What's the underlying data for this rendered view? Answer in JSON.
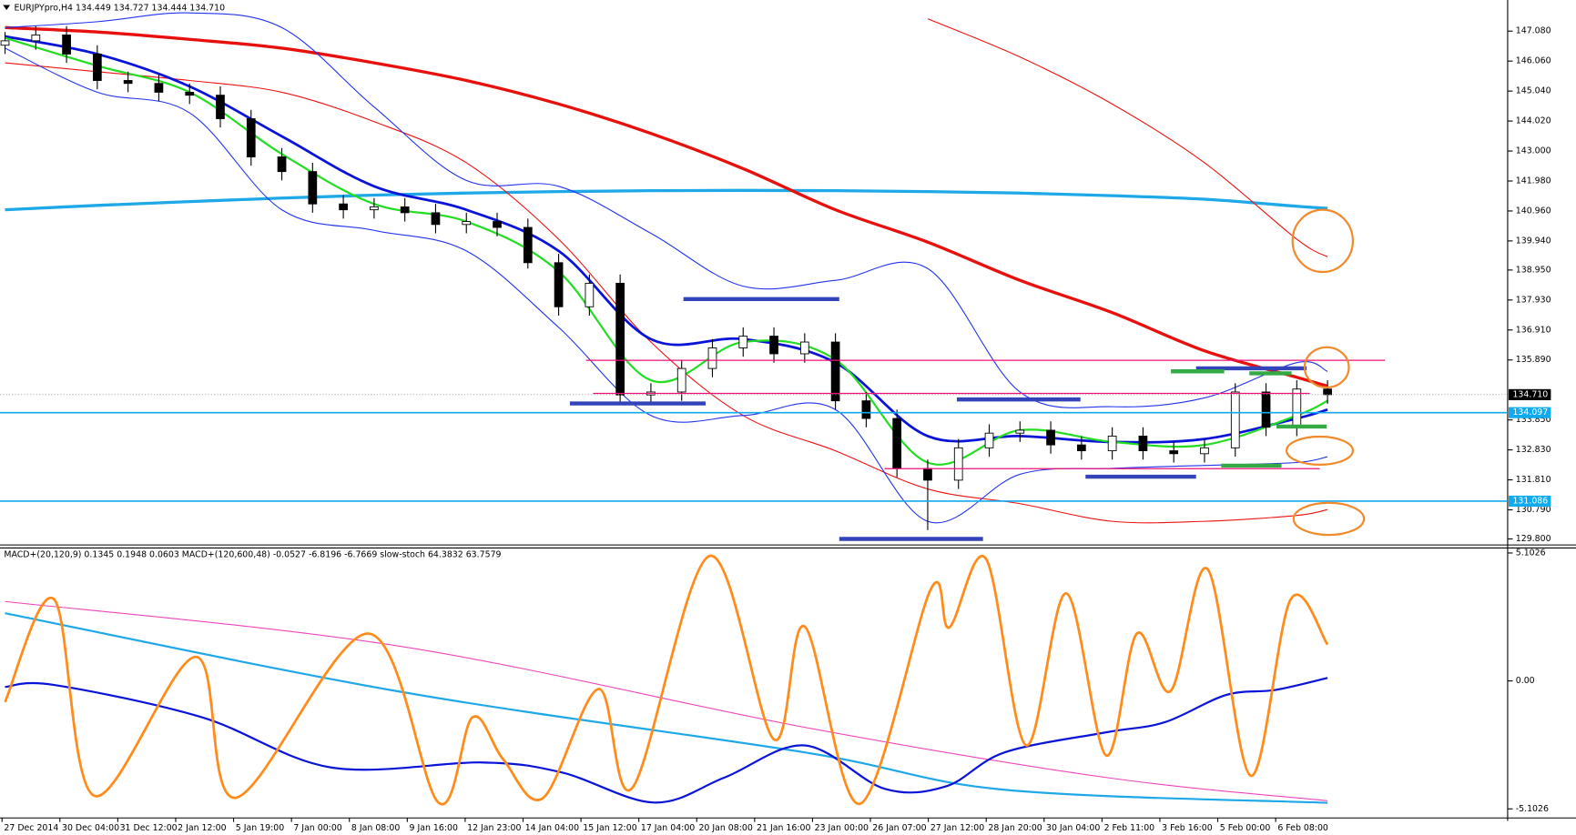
{
  "chart_data": [
    {
      "type": "candlestick",
      "title": "EURJPYpro,H4  134.449 134.727 134.444 134.710",
      "ylim": [
        129.595,
        148.139
      ],
      "yticks": [
        {
          "value": 147.08,
          "label": "147.080"
        },
        {
          "value": 146.06,
          "label": "146.060"
        },
        {
          "value": 145.04,
          "label": "145.040"
        },
        {
          "value": 144.02,
          "label": "144.020"
        },
        {
          "value": 143.0,
          "label": "143.000"
        },
        {
          "value": 141.98,
          "label": "141.980"
        },
        {
          "value": 140.96,
          "label": "140.960"
        },
        {
          "value": 139.94,
          "label": "139.940"
        },
        {
          "value": 138.95,
          "label": "138.950"
        },
        {
          "value": 137.93,
          "label": "137.930"
        },
        {
          "value": 136.91,
          "label": "136.910"
        },
        {
          "value": 135.89,
          "label": "135.890"
        },
        {
          "value": 133.85,
          "label": "133.850"
        },
        {
          "value": 132.83,
          "label": "132.830"
        },
        {
          "value": 131.81,
          "label": "131.810"
        },
        {
          "value": 130.79,
          "label": "130.790"
        },
        {
          "value": 129.8,
          "label": "129.800"
        }
      ],
      "x_labels": [
        "27 Dec 2014",
        "30 Dec 04:00",
        "31 Dec 12:00",
        "2 Jan 12:00",
        "5 Jan 19:00",
        "7 Jan 00:00",
        "8 Jan 08:00",
        "9 Jan 16:00",
        "12 Jan 23:00",
        "14 Jan 04:00",
        "15 Jan 12:00",
        "17 Jan 04:00",
        "20 Jan 08:00",
        "21 Jan 16:00",
        "23 Jan 00:00",
        "26 Jan 07:00",
        "27 Jan 12:00",
        "28 Jan 20:00",
        "30 Jan 04:00",
        "2 Feb 11:00",
        "3 Feb 16:00",
        "5 Feb 00:00",
        "6 Feb 08:00"
      ],
      "open": [
        146.6,
        146.75,
        146.95,
        146.3,
        145.4,
        145.3,
        145.0,
        144.9,
        144.1,
        142.8,
        142.3,
        141.2,
        141.0,
        141.1,
        140.9,
        140.5,
        140.6,
        140.4,
        139.2,
        137.7,
        138.5,
        134.7,
        134.8,
        135.6,
        136.3,
        136.7,
        136.1,
        136.5,
        134.5,
        133.9,
        132.2,
        131.8,
        132.9,
        133.4,
        133.5,
        133.0,
        132.8,
        133.3,
        132.8,
        132.7,
        132.9,
        134.8,
        133.6,
        134.9
      ],
      "high": [
        147.05,
        147.25,
        147.25,
        146.6,
        145.7,
        145.6,
        145.3,
        145.2,
        144.4,
        143.1,
        142.6,
        141.5,
        141.4,
        141.4,
        141.2,
        140.9,
        140.9,
        140.7,
        139.5,
        138.8,
        138.8,
        135.1,
        135.9,
        136.6,
        137.0,
        137.0,
        136.8,
        136.8,
        134.8,
        134.2,
        132.5,
        133.2,
        133.7,
        133.8,
        133.8,
        133.3,
        133.6,
        133.6,
        133.1,
        133.2,
        135.1,
        135.1,
        135.2,
        135.2
      ],
      "low": [
        146.3,
        146.45,
        146.0,
        145.1,
        145.0,
        144.7,
        144.6,
        143.8,
        142.5,
        142.0,
        140.9,
        140.7,
        140.7,
        140.6,
        140.2,
        140.2,
        140.1,
        139.0,
        137.4,
        137.4,
        134.4,
        134.4,
        134.5,
        135.3,
        136.0,
        135.8,
        135.8,
        134.2,
        133.6,
        131.9,
        130.1,
        131.5,
        132.6,
        133.1,
        132.7,
        132.5,
        132.5,
        132.5,
        132.4,
        132.4,
        132.6,
        133.3,
        133.3,
        134.4
      ],
      "close": [
        146.75,
        146.95,
        146.3,
        145.4,
        145.3,
        145.0,
        144.9,
        144.1,
        142.8,
        142.3,
        141.2,
        141.0,
        141.1,
        140.9,
        140.5,
        140.6,
        140.4,
        139.2,
        137.7,
        138.5,
        134.7,
        134.8,
        135.6,
        136.3,
        136.7,
        136.1,
        136.5,
        134.5,
        133.9,
        132.2,
        131.8,
        132.9,
        133.4,
        133.5,
        133.0,
        132.8,
        133.3,
        132.8,
        132.7,
        132.9,
        134.8,
        133.6,
        134.9,
        134.71
      ],
      "series": [
        {
          "color": "#1fa8e8",
          "width": 3,
          "x": [
            0,
            3,
            6,
            9,
            12,
            15,
            18,
            21,
            24,
            27,
            30,
            33,
            36,
            39,
            42,
            43
          ],
          "values": [
            141.0,
            141.15,
            141.28,
            141.4,
            141.5,
            141.57,
            141.62,
            141.65,
            141.66,
            141.65,
            141.62,
            141.57,
            141.48,
            141.36,
            141.12,
            141.05
          ]
        },
        {
          "color": "#e8100c",
          "width": 3,
          "x": [
            0,
            3,
            6,
            9,
            12,
            15,
            18,
            21,
            24,
            27,
            30,
            33,
            36,
            39,
            42,
            43
          ],
          "values": [
            147.2,
            147.05,
            146.8,
            146.5,
            146.0,
            145.4,
            144.6,
            143.6,
            142.4,
            141.0,
            139.9,
            138.6,
            137.5,
            136.2,
            135.3,
            135.0
          ]
        },
        {
          "color": "#ee1111",
          "width": 1,
          "x": [
            0,
            3,
            6,
            9,
            12,
            15,
            18,
            21,
            24,
            27,
            30,
            33,
            36,
            39,
            42,
            43
          ],
          "values": [
            null,
            null,
            null,
            null,
            null,
            null,
            null,
            null,
            null,
            null,
            147.5,
            146.2,
            144.6,
            142.6,
            140.0,
            139.4
          ]
        },
        {
          "color": "#ee1111",
          "width": 1,
          "x": [
            0,
            3,
            6,
            9,
            12,
            15,
            18,
            21,
            24,
            27,
            30,
            33,
            36,
            39,
            42,
            43
          ],
          "values": [
            146.0,
            145.7,
            145.4,
            145.0,
            144.0,
            142.6,
            140.0,
            136.5,
            134.0,
            132.8,
            131.5,
            131.0,
            130.4,
            130.4,
            130.6,
            130.8
          ]
        },
        {
          "color": "#2233ee",
          "width": 1,
          "x": [
            0,
            3,
            6,
            9,
            12,
            15,
            18,
            21,
            24,
            27,
            30,
            33,
            36,
            39,
            42,
            43
          ],
          "values": [
            147.2,
            147.4,
            147.7,
            147.2,
            144.5,
            142.0,
            141.8,
            140.2,
            138.4,
            138.6,
            139.0,
            134.8,
            134.3,
            134.6,
            135.8,
            135.5
          ]
        },
        {
          "color": "#2233ee",
          "width": 1,
          "x": [
            0,
            3,
            6,
            9,
            12,
            15,
            18,
            21,
            24,
            27,
            30,
            33,
            36,
            39,
            42,
            43
          ],
          "values": [
            146.5,
            145.0,
            144.3,
            141.0,
            140.3,
            139.6,
            137.0,
            134.0,
            134.0,
            134.2,
            130.4,
            132.0,
            132.2,
            132.3,
            132.4,
            132.6
          ]
        },
        {
          "color": "#0a14d8",
          "width": 2.5,
          "x": [
            0,
            3,
            6,
            9,
            12,
            15,
            18,
            21,
            24,
            27,
            30,
            33,
            36,
            39,
            42,
            43
          ],
          "values": [
            146.9,
            146.3,
            145.2,
            143.5,
            141.8,
            141.0,
            139.6,
            136.6,
            136.6,
            135.8,
            133.3,
            133.3,
            133.1,
            133.2,
            133.9,
            134.2
          ]
        },
        {
          "color": "#22dd22",
          "width": 2,
          "x": [
            0,
            3,
            6,
            9,
            12,
            15,
            18,
            21,
            24,
            27,
            30,
            33,
            36,
            39,
            42,
            43
          ],
          "values": [
            146.85,
            145.9,
            145.0,
            142.9,
            141.2,
            140.6,
            138.9,
            135.2,
            136.5,
            135.9,
            132.4,
            133.5,
            133.1,
            133.0,
            134.0,
            134.5
          ]
        }
      ],
      "levels": [
        {
          "value": 134.71,
          "label": "134.710",
          "color": "#000000",
          "style": "dotted"
        },
        {
          "value": 134.097,
          "label": "134.097",
          "color": "#10aaee",
          "style": "solid"
        },
        {
          "value": 131.086,
          "label": "131.086",
          "color": "#10aaee",
          "style": "solid"
        }
      ]
    },
    {
      "type": "line",
      "title": "MACD+(20,120,9) 0.1345 0.1948 0.0603  MACD+(120,600,48) -0.0527 -6.8196 -6.7669  slow-stoch 64.3832 63.7579",
      "ylim": [
        -5.464,
        5.303
      ],
      "yticks": [
        5.1026,
        {
          "value": 0,
          "label": "0.00"
        },
        -5.1026
      ],
      "series": [
        {
          "color": "#ee44bb",
          "width": 1,
          "x": [
            0,
            12.9,
            26.0,
            35.8,
            43.0
          ],
          "values": [
            3.17,
            1.37,
            -1.85,
            -3.85,
            -4.78
          ]
        },
        {
          "color": "#1fa8e8",
          "width": 2,
          "x": [
            0,
            12.9,
            26.0,
            32.5,
            43.0
          ],
          "values": [
            2.7,
            -0.44,
            -2.85,
            -4.34,
            -4.86
          ]
        },
        {
          "color": "#0a14d8",
          "width": 2,
          "x": [
            0,
            1.6,
            6.4,
            10.6,
            15.5,
            18.1,
            21.1,
            23.4,
            26.0,
            28.6,
            30.6,
            32.5,
            35.8,
            37.7,
            39.7,
            41.3,
            43.0
          ],
          "values": [
            -0.24,
            -0.16,
            -1.45,
            -3.45,
            -3.25,
            -3.65,
            -4.85,
            -3.85,
            -2.57,
            -4.3,
            -4.2,
            -2.85,
            -2.05,
            -1.65,
            -0.56,
            -0.36,
            0.12
          ]
        },
        {
          "color": "#ff8c1a",
          "width": 2.5,
          "x": [
            0,
            1.6,
            2.9,
            6.2,
            7.5,
            11.8,
            14.1,
            15.2,
            16.2,
            17.5,
            19.3,
            20.4,
            22.9,
            25.0,
            26.0,
            27.8,
            30.1,
            30.7,
            31.9,
            33.2,
            34.5,
            35.8,
            36.8,
            37.9,
            39.1,
            40.5,
            41.8,
            43.0
          ],
          "values": [
            -0.84,
            3.25,
            -4.58,
            0.96,
            -4.66,
            1.89,
            -4.86,
            -1.45,
            -3.13,
            -4.66,
            -0.32,
            -4.26,
            4.98,
            -2.33,
            2.17,
            -4.9,
            3.66,
            2.13,
            4.86,
            -2.57,
            3.49,
            -2.97,
            1.89,
            -0.4,
            4.46,
            -3.78,
            3.25,
            1.45
          ]
        }
      ]
    }
  ]
}
